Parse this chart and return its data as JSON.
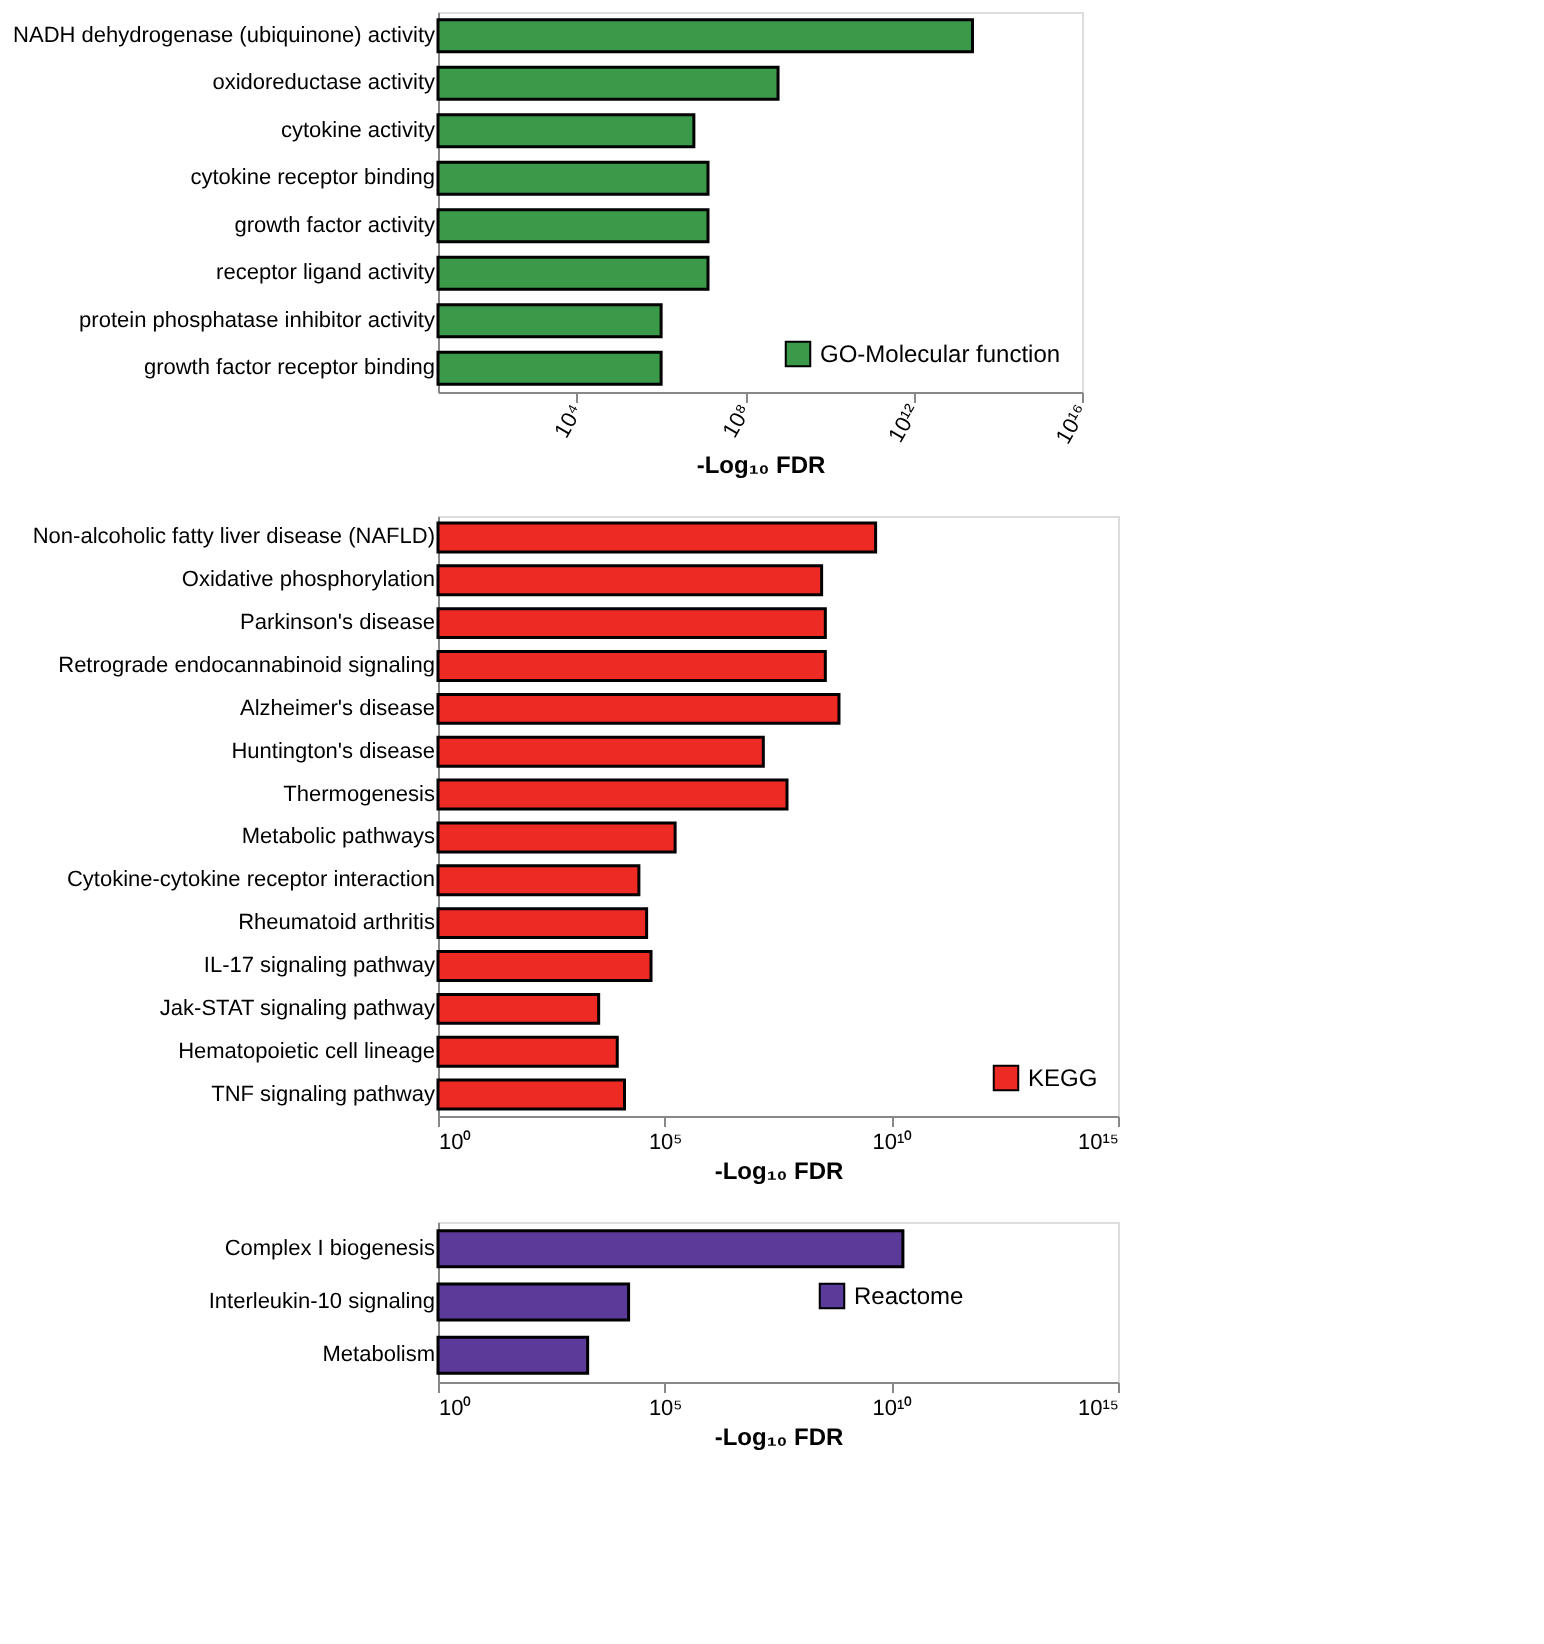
{
  "chart_data": [
    {
      "type": "bar",
      "orientation": "horizontal",
      "log": "x",
      "grid": false,
      "legend": "bottom right",
      "xlabel": "-Log₁₀ FDR",
      "categories": [
        "NADH dehydrogenase (ubiquinone) activity",
        "oxidoreductase activity",
        "cytokine activity",
        "cytokine receptor binding",
        "growth factor activity",
        "receptor ligand activity",
        "protein phosphatase inhibitor activity",
        "growth factor receptor binding"
      ],
      "series": [
        {
          "name": "GO-Molecular function",
          "color": "#3a9a4a",
          "values": [
            25000000000000.0,
            600000000.0,
            6000000.0,
            13000000.0,
            13000000.0,
            13000000.0,
            1000000.0,
            1000000.0
          ]
        }
      ],
      "xlim": [
        5,
        1e+16
      ],
      "xticks": [
        {
          "value": 10000.0,
          "label": "10⁴"
        },
        {
          "value": 100000000.0,
          "label": "10⁸"
        },
        {
          "value": 1000000000000.0,
          "label": "10¹²"
        },
        {
          "value": 1e+16,
          "label": "10¹⁶"
        }
      ]
    },
    {
      "type": "bar",
      "orientation": "horizontal",
      "log": "x",
      "grid": false,
      "legend": "bottom right",
      "xlabel": "-Log₁₀ FDR",
      "categories": [
        "Non-alcoholic fatty liver disease (NAFLD)",
        "Oxidative phosphorylation",
        "Parkinson's disease",
        "Retrograde endocannabinoid signaling",
        "Alzheimer's disease",
        "Huntington's disease",
        "Thermogenesis",
        "Metabolic pathways",
        "Cytokine-cytokine receptor interaction",
        "Rheumatoid arthritis",
        "IL-17 signaling pathway",
        "Jak-STAT signaling pathway",
        "Hematopoietic cell lineage",
        "TNF signaling pathway"
      ],
      "series": [
        {
          "name": "KEGG",
          "color": "#ee2a24",
          "values": [
            4500000000.0,
            290000000.0,
            350000000.0,
            350000000.0,
            700000000.0,
            15000000.0,
            50000000.0,
            170000.0,
            27000.0,
            40000.0,
            50000.0,
            3500.0,
            9000.0,
            13000.0
          ]
        }
      ],
      "xlim": [
        1,
        1000000000000000.0
      ],
      "xticks": [
        {
          "value": 1,
          "label": "10⁰"
        },
        {
          "value": 100000.0,
          "label": "10⁵"
        },
        {
          "value": 10000000000.0,
          "label": "10¹⁰"
        },
        {
          "value": 1000000000000000.0,
          "label": "10¹⁵"
        }
      ]
    },
    {
      "type": "bar",
      "orientation": "horizontal",
      "log": "x",
      "grid": false,
      "legend": "right",
      "xlabel": "-Log₁₀ FDR",
      "categories": [
        "Complex I biogenesis",
        "Interleukin-10 signaling",
        "Metabolism"
      ],
      "series": [
        {
          "name": "Reactome",
          "color": "#5b3a99",
          "values": [
            18000000000.0,
            16000.0,
            2000.0
          ]
        }
      ],
      "xlim": [
        1,
        1000000000000000.0
      ],
      "xticks": [
        {
          "value": 1,
          "label": "10⁰"
        },
        {
          "value": 100000.0,
          "label": "10⁵"
        },
        {
          "value": 10000000000.0,
          "label": "10¹⁰"
        },
        {
          "value": 1000000000000000.0,
          "label": "10¹⁵"
        }
      ]
    }
  ]
}
